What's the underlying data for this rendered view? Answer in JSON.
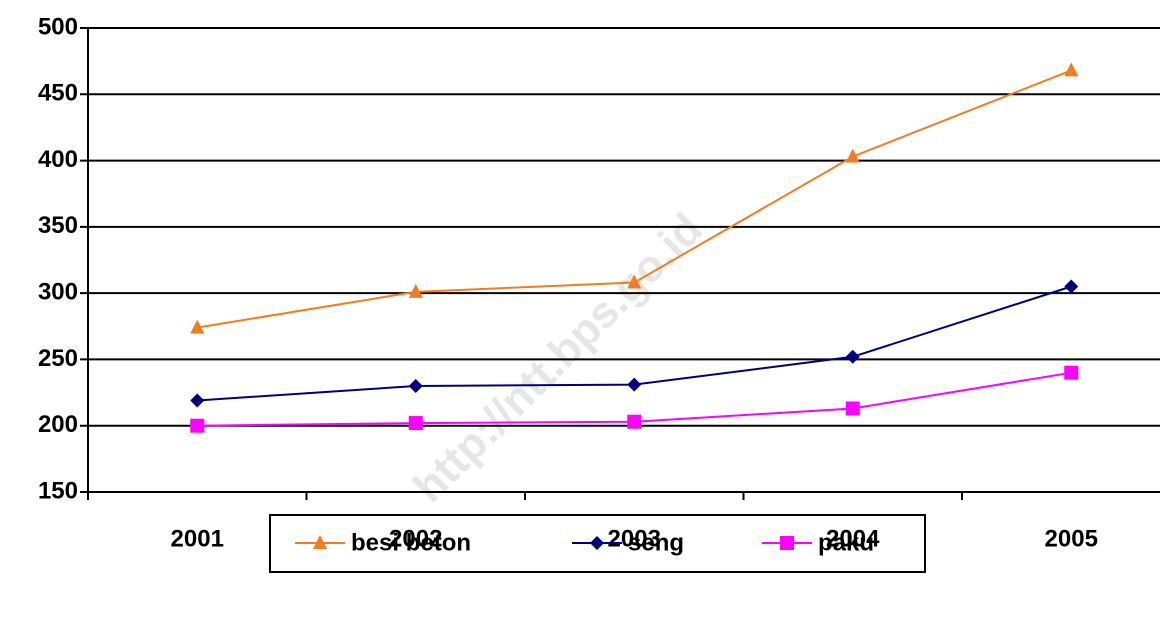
{
  "chart_data": {
    "type": "line",
    "categories": [
      "2001",
      "2002",
      "2003",
      "2004",
      "2005"
    ],
    "series": [
      {
        "name": "besi beton",
        "color": "#f47c20",
        "marker": "triangle",
        "values": [
          274,
          301,
          308,
          403,
          468
        ]
      },
      {
        "name": "seng",
        "color": "#000080",
        "marker": "diamond",
        "values": [
          219,
          230,
          231,
          252,
          305
        ]
      },
      {
        "name": "paku",
        "color": "#ff00ff",
        "marker": "square",
        "values": [
          200,
          202,
          203,
          213,
          240
        ]
      }
    ],
    "ylim": [
      150,
      500
    ],
    "yticks": [
      150,
      200,
      250,
      300,
      350,
      400,
      450,
      500
    ],
    "grid": true,
    "legend": "bottom",
    "watermark": "http://ntt.bps.go.id"
  }
}
